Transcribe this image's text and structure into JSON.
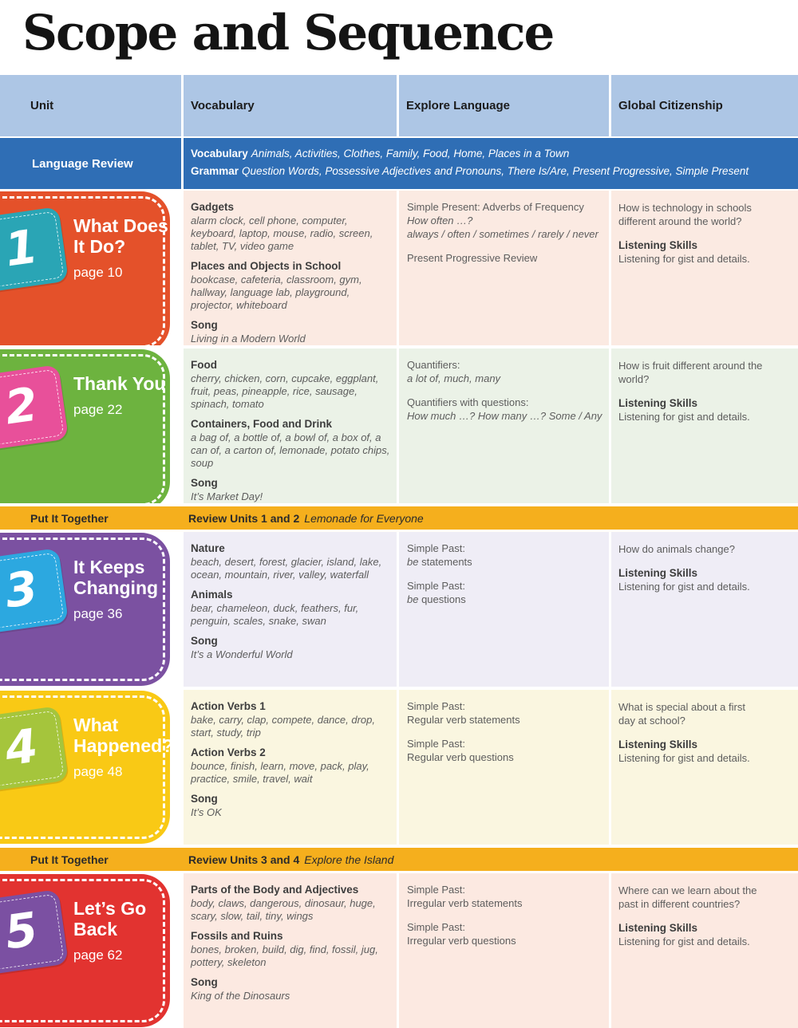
{
  "page_title": "Scope and Sequence",
  "table": {
    "columns": [
      "Unit",
      "Vocabulary",
      "Explore Language",
      "Global Citizenship"
    ],
    "language_review": {
      "label": "Language Review",
      "vocabulary_label": "Vocabulary",
      "vocabulary_text": "Animals, Activities, Clothes, Family, Food, Home, Places in a Town",
      "grammar_label": "Grammar",
      "grammar_text": "Question Words, Possessive Adjectives and Pronouns, There Is/Are, Present Progressive, Simple Present"
    },
    "units": [
      {
        "number": "1",
        "title": "What Does It Do?",
        "page": "page 10",
        "colors": {
          "card": "#e4512a",
          "tile": "#2aa5b5",
          "tint": "#fbeae2"
        },
        "vocabulary": [
          {
            "heading": "Gadgets",
            "words": "alarm clock, cell phone, computer, keyboard, laptop, mouse, radio, screen, tablet, TV, video game"
          },
          {
            "heading": "Places and Objects in School",
            "words": "bookcase, cafeteria, classroom, gym, hallway, language lab, playground, projector, whiteboard"
          },
          {
            "heading": "Song",
            "words": "Living in a Modern World"
          }
        ],
        "explore": [
          {
            "heading": "Simple Present: Adverbs of Frequency",
            "lines": [
              {
                "em": "How often …?",
                "text": ""
              },
              {
                "em": "always / often / sometimes / rarely / never",
                "text": ""
              }
            ]
          },
          {
            "heading": "Present Progressive Review",
            "lines": []
          }
        ],
        "global": {
          "question": "How is technology in schools different around the world?",
          "skills_heading": "Listening Skills",
          "skills_text": "Listening for gist and details."
        }
      },
      {
        "number": "2",
        "title": "Thank You",
        "page": "page 22",
        "colors": {
          "card": "#6db33f",
          "tile": "#e8509a",
          "tint": "#ebf2e7"
        },
        "vocabulary": [
          {
            "heading": "Food",
            "words": "cherry, chicken, corn, cupcake, eggplant, fruit, peas, pineapple, rice, sausage, spinach, tomato"
          },
          {
            "heading": "Containers, Food and Drink",
            "words": "a bag of, a bottle of, a bowl of, a box of, a can of, a carton of, lemonade, potato chips, soup"
          },
          {
            "heading": "Song",
            "words": "It’s Market Day!"
          }
        ],
        "explore": [
          {
            "heading": "Quantifiers:",
            "lines": [
              {
                "em": "a lot of, much, many",
                "text": ""
              }
            ]
          },
          {
            "heading": "Quantifiers with questions:",
            "lines": [
              {
                "em": "How much …? How many …? Some / Any",
                "text": ""
              }
            ]
          }
        ],
        "global": {
          "question": "How is fruit different around the world?",
          "skills_heading": "Listening Skills",
          "skills_text": "Listening for gist and details."
        }
      },
      {
        "number": "3",
        "title": "It Keeps Changing",
        "page": "page 36",
        "colors": {
          "card": "#7b51a1",
          "tile": "#2ca8e0",
          "tint": "#efedf6"
        },
        "vocabulary": [
          {
            "heading": "Nature",
            "words": "beach, desert, forest, glacier, island, lake, ocean, mountain, river, valley, waterfall"
          },
          {
            "heading": "Animals",
            "words": "bear, chameleon, duck, feathers, fur, penguin, scales, snake, swan"
          },
          {
            "heading": "Song",
            "words": "It’s a Wonderful World"
          }
        ],
        "explore": [
          {
            "heading": "Simple Past:",
            "lines": [
              {
                "em": "be",
                "text": " statements"
              }
            ]
          },
          {
            "heading": "Simple Past:",
            "lines": [
              {
                "em": "be",
                "text": " questions"
              }
            ]
          }
        ],
        "global": {
          "question": "How do animals change?",
          "skills_heading": "Listening Skills",
          "skills_text": "Listening for gist and details."
        }
      },
      {
        "number": "4",
        "title": "What Happened?",
        "page": "page 48",
        "colors": {
          "card": "#f9c915",
          "tile": "#a5c53c",
          "tint": "#faf6e0"
        },
        "vocabulary": [
          {
            "heading": "Action Verbs 1",
            "words": "bake, carry, clap, compete, dance, drop, start, study, trip"
          },
          {
            "heading": "Action Verbs 2",
            "words": "bounce, finish, learn, move, pack, play, practice, smile, travel, wait"
          },
          {
            "heading": "Song",
            "words": "It’s OK"
          }
        ],
        "explore": [
          {
            "heading": "Simple Past:",
            "lines": [
              {
                "em": "",
                "text": "Regular verb statements"
              }
            ]
          },
          {
            "heading": "Simple Past:",
            "lines": [
              {
                "em": "",
                "text": "Regular verb questions"
              }
            ]
          }
        ],
        "global": {
          "question": "What is special about a first day at school?",
          "skills_heading": "Listening Skills",
          "skills_text": "Listening for gist and details."
        }
      },
      {
        "number": "5",
        "title": "Let’s Go Back",
        "page": "page 62",
        "colors": {
          "card": "#e23330",
          "tile": "#7b50a2",
          "tint": "#fce9e1"
        },
        "vocabulary": [
          {
            "heading": "Parts of the Body and Adjectives",
            "words": "body, claws, dangerous, dinosaur, huge, scary, slow, tail, tiny, wings"
          },
          {
            "heading": "Fossils and Ruins",
            "words": "bones, broken, build, dig, find, fossil, jug, pottery, skeleton"
          },
          {
            "heading": "Song",
            "words": "King of the Dinosaurs"
          }
        ],
        "explore": [
          {
            "heading": "Simple Past:",
            "lines": [
              {
                "em": "",
                "text": "Irregular verb statements"
              }
            ]
          },
          {
            "heading": "Simple Past:",
            "lines": [
              {
                "em": "",
                "text": "Irregular verb questions"
              }
            ]
          }
        ],
        "global": {
          "question": "Where can we learn about the past in different countries?",
          "skills_heading": "Listening Skills",
          "skills_text": "Listening for gist and details."
        }
      }
    ],
    "put_it_together": [
      {
        "label": "Put It Together",
        "review": "Review Units 1 and 2",
        "title": "Lemonade for Everyone"
      },
      {
        "label": "Put It Together",
        "review": "Review Units 3 and 4",
        "title": "Explore the Island"
      }
    ]
  }
}
